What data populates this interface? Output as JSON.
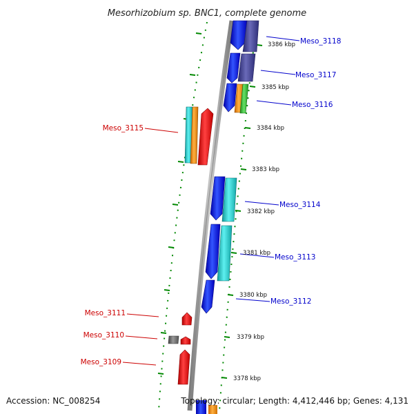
{
  "title": "Mesorhizobium sp. BNC1, complete genome",
  "accession": "Accession: NC_008254",
  "topology": "Topology: circular; Length: 4,412,446 bp; Genes: 4,131",
  "colors": {
    "blue": "#0000ee",
    "navy": "#3a3a8c",
    "cyan": "#1ec8c8",
    "orange": "#ff8c00",
    "green": "#33bb33",
    "red": "#ee0000",
    "gray": "#555555",
    "label_blue": "#0000cc",
    "label_red": "#cc0000",
    "tick_green": "#008800"
  },
  "kbp_ticks": [
    "3386 kbp",
    "3385 kbp",
    "3384 kbp",
    "3383 kbp",
    "3382 kbp",
    "3381 kbp",
    "3380 kbp",
    "3379 kbp",
    "3378 kbp"
  ],
  "gene_labels": [
    {
      "text": "Meso_3118",
      "color": "blue"
    },
    {
      "text": "Meso_3117",
      "color": "blue"
    },
    {
      "text": "Meso_3116",
      "color": "blue"
    },
    {
      "text": "Meso_3115",
      "color": "red"
    },
    {
      "text": "Meso_3114",
      "color": "blue"
    },
    {
      "text": "Meso_3113",
      "color": "blue"
    },
    {
      "text": "Meso_3112",
      "color": "blue"
    },
    {
      "text": "Meso_3111",
      "color": "red"
    },
    {
      "text": "Meso_3110",
      "color": "red"
    },
    {
      "text": "Meso_3109",
      "color": "red"
    }
  ]
}
